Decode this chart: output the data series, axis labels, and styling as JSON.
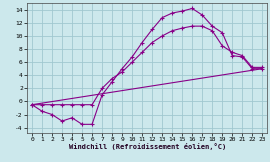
{
  "background_color": "#cce8ec",
  "grid_color": "#a0c8d0",
  "line_color": "#880088",
  "xlabel": "Windchill (Refroidissement éolien,°C)",
  "xlim": [
    -0.5,
    23.5
  ],
  "ylim": [
    -4.8,
    15.0
  ],
  "xticks": [
    0,
    1,
    2,
    3,
    4,
    5,
    6,
    7,
    8,
    9,
    10,
    11,
    12,
    13,
    14,
    15,
    16,
    17,
    18,
    19,
    20,
    21,
    22,
    23
  ],
  "yticks": [
    -4,
    -2,
    0,
    2,
    4,
    6,
    8,
    10,
    12,
    14
  ],
  "line1_x": [
    0,
    1,
    2,
    3,
    4,
    5,
    6,
    7,
    8,
    9,
    10,
    11,
    12,
    13,
    14,
    15,
    16,
    17,
    18,
    19,
    20,
    21,
    22,
    23
  ],
  "line1_y": [
    -0.5,
    -1.5,
    -2.0,
    -3.0,
    -2.5,
    -3.5,
    -3.5,
    1.0,
    3.0,
    5.0,
    6.8,
    9.0,
    11.0,
    12.8,
    13.5,
    13.8,
    14.2,
    13.2,
    11.5,
    10.5,
    7.0,
    6.8,
    5.0,
    5.0
  ],
  "line2_x": [
    0,
    1,
    2,
    3,
    4,
    5,
    6,
    7,
    8,
    9,
    10,
    11,
    12,
    13,
    14,
    15,
    16,
    17,
    18,
    19,
    20,
    21,
    22,
    23
  ],
  "line2_y": [
    -0.5,
    -0.5,
    -0.5,
    -0.5,
    -0.5,
    -0.5,
    -0.5,
    2.0,
    3.5,
    4.5,
    6.0,
    7.5,
    9.0,
    10.0,
    10.8,
    11.2,
    11.5,
    11.5,
    10.8,
    8.5,
    7.5,
    7.0,
    5.2,
    5.2
  ],
  "line3_x": [
    0,
    23
  ],
  "line3_y": [
    -0.5,
    5.0
  ]
}
